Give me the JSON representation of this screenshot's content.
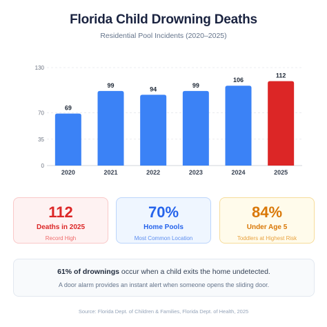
{
  "title": "Florida Child Drowning Deaths",
  "subtitle": "Residential Pool Incidents (2020–2025)",
  "chart_data": {
    "type": "bar",
    "categories": [
      "2020",
      "2021",
      "2022",
      "2023",
      "2024",
      "2025"
    ],
    "values": [
      69,
      99,
      94,
      99,
      106,
      112
    ],
    "ylim": [
      0,
      130
    ],
    "yticks": [
      0,
      35,
      70,
      130
    ],
    "grid": true,
    "bar_color": "#3b82f6",
    "highlight_color": "#dc2626",
    "highlight_index": 5,
    "data_labels": true
  },
  "stats": [
    {
      "value": "112",
      "label": "Deaths in 2025",
      "sub": "Record High",
      "color": "#dc2626"
    },
    {
      "value": "70%",
      "label": "Home Pools",
      "sub": "Most Common Location",
      "color": "#2563eb"
    },
    {
      "value": "84%",
      "label": "Under Age 5",
      "sub": "Toddlers at Highest Risk",
      "color": "#d97706"
    }
  ],
  "note": {
    "bold": "61% of drownings",
    "rest": " occur when a child exits the home undetected.",
    "sub": "A door alarm provides an instant alert when someone opens the sliding door."
  },
  "source": "Source: Florida Dept. of Children & Families, Florida Dept. of Health, 2025"
}
